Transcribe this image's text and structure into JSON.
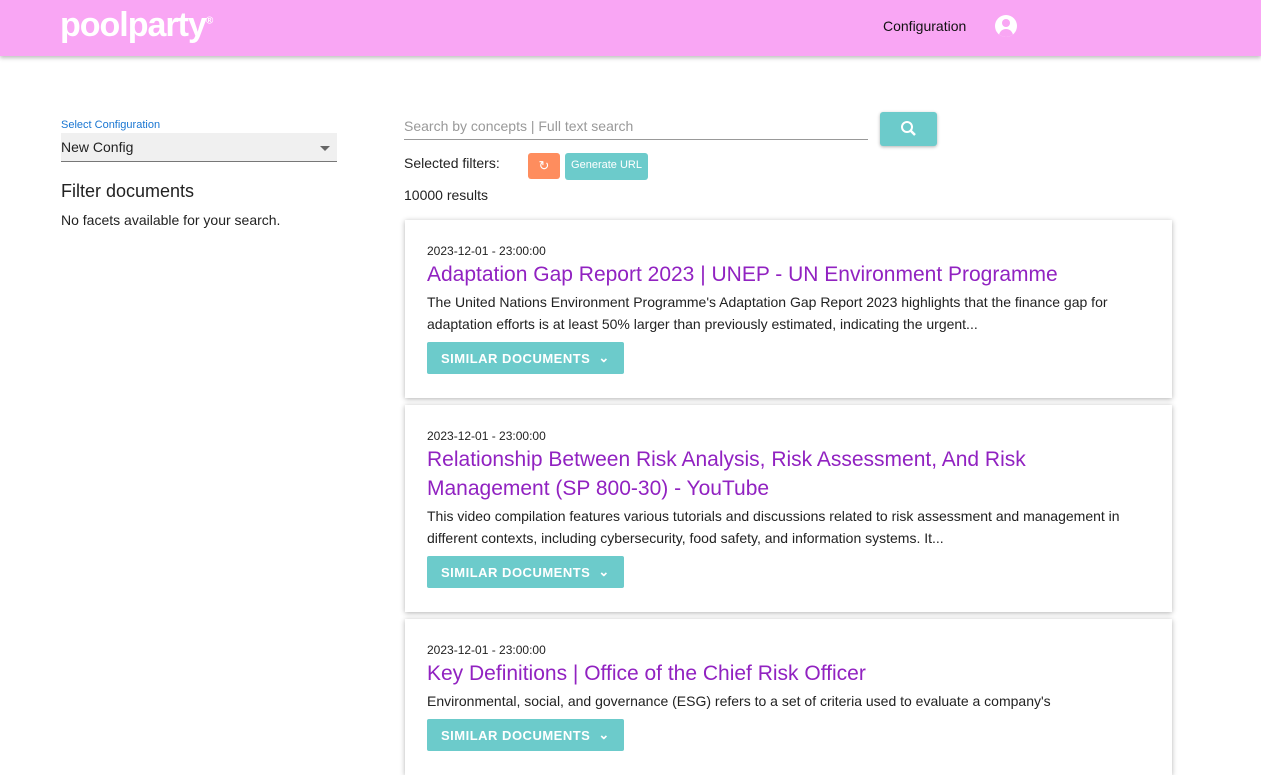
{
  "header": {
    "logo": "poolparty",
    "config_link": "Configuration"
  },
  "sidebar": {
    "select_label": "Select Configuration",
    "select_value": "New Config",
    "filter_title": "Filter documents",
    "no_facets": "No facets available for your search."
  },
  "search": {
    "placeholder": "Search by concepts | Full text search",
    "selected_filters": "Selected filters:",
    "generate_url": "Generate URL",
    "results": "10000 results"
  },
  "colors": {
    "header": "#f9a6f4",
    "accent": "#6ccbcb",
    "reset": "#fe8d5e",
    "title": "#9122c1"
  },
  "results": [
    {
      "date": "2023-12-01 - 23:00:00",
      "title": "Adaptation Gap Report 2023 | UNEP - UN Environment Programme",
      "desc": "The United Nations Environment Programme's Adaptation Gap Report 2023 highlights that the finance gap for adaptation efforts is at least 50% larger than previously estimated, indicating the urgent...",
      "button": "SIMILAR DOCUMENTS"
    },
    {
      "date": "2023-12-01 - 23:00:00",
      "title": "Relationship Between Risk Analysis, Risk Assessment, And Risk Management (SP 800-30) - YouTube",
      "desc": "This video compilation features various tutorials and discussions related to risk assessment and management in different contexts, including cybersecurity, food safety, and information systems. It...",
      "button": "SIMILAR DOCUMENTS"
    },
    {
      "date": "2023-12-01 - 23:00:00",
      "title": "Key Definitions | Office of the Chief Risk Officer",
      "desc": "Environmental, social, and governance (ESG) refers to a set of criteria used to evaluate a company's",
      "button": "SIMILAR DOCUMENTS"
    }
  ]
}
